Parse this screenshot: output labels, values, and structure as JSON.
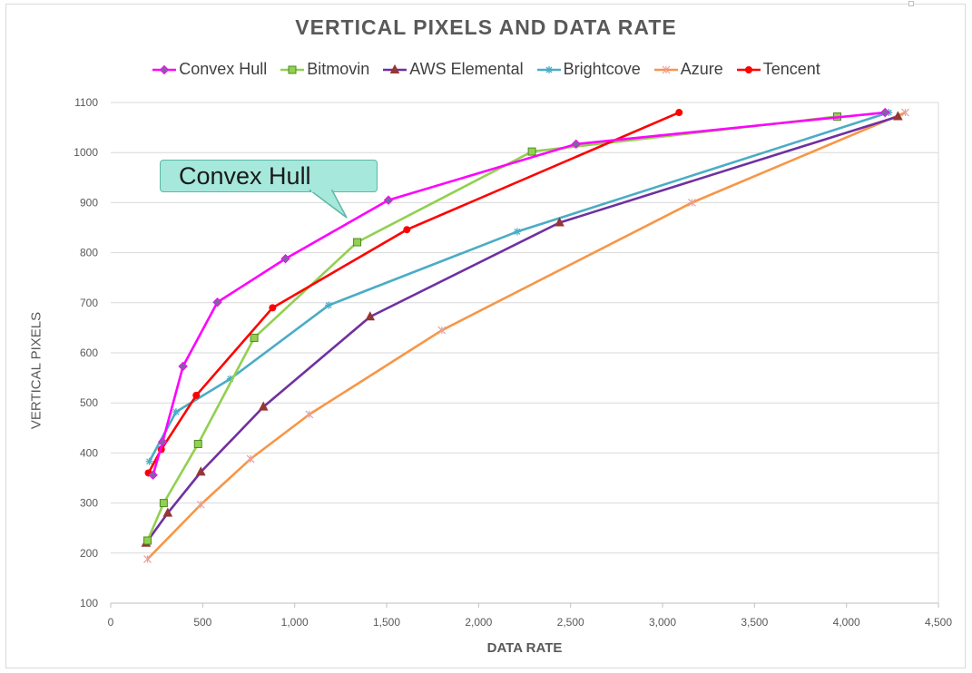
{
  "chart_data": {
    "type": "line",
    "title": "VERTICAL PIXELS AND DATA RATE",
    "xlabel": "DATA RATE",
    "ylabel": "VERTICAL PIXELS",
    "xlim": [
      0,
      4500
    ],
    "ylim": [
      100,
      1100
    ],
    "x_ticks": [
      "0",
      "500",
      "1,000",
      "1,500",
      "2,000",
      "2,500",
      "3,000",
      "3,500",
      "4,000",
      "4,500"
    ],
    "y_ticks": [
      "100",
      "200",
      "300",
      "400",
      "500",
      "600",
      "700",
      "800",
      "900",
      "1000",
      "1100"
    ],
    "x_tick_values": [
      0,
      500,
      1000,
      1500,
      2000,
      2500,
      3000,
      3500,
      4000,
      4500
    ],
    "y_tick_values": [
      100,
      200,
      300,
      400,
      500,
      600,
      700,
      800,
      900,
      1000,
      1100
    ],
    "grid": "horizontal",
    "legend_position": "top",
    "annotation": "Convex Hull",
    "series": [
      {
        "name": "Convex Hull",
        "color": "#ff00ff",
        "marker": "diamond",
        "points": [
          [
            230,
            356
          ],
          [
            282,
            422
          ],
          [
            393,
            573
          ],
          [
            580,
            701
          ],
          [
            950,
            788
          ],
          [
            1510,
            905
          ],
          [
            2530,
            1017
          ],
          [
            4210,
            1080
          ]
        ]
      },
      {
        "name": "Bitmovin",
        "color": "#92d050",
        "marker": "square",
        "points": [
          [
            200,
            225
          ],
          [
            288,
            300
          ],
          [
            475,
            418
          ],
          [
            780,
            630
          ],
          [
            1340,
            821
          ],
          [
            2290,
            1002
          ],
          [
            3950,
            1072
          ]
        ]
      },
      {
        "name": "AWS Elemental",
        "color": "#7030a0",
        "marker": "triangle",
        "points": [
          [
            192,
            220
          ],
          [
            310,
            280
          ],
          [
            490,
            362
          ],
          [
            830,
            492
          ],
          [
            1410,
            672
          ],
          [
            2440,
            860
          ],
          [
            4280,
            1072
          ]
        ]
      },
      {
        "name": "Brightcove",
        "color": "#4bacc6",
        "marker": "star",
        "points": [
          [
            210,
            383
          ],
          [
            355,
            482
          ],
          [
            650,
            548
          ],
          [
            1185,
            695
          ],
          [
            2210,
            842
          ],
          [
            4230,
            1080
          ]
        ]
      },
      {
        "name": "Azure",
        "color": "#f79646",
        "marker": "x",
        "points": [
          [
            200,
            188
          ],
          [
            490,
            297
          ],
          [
            760,
            388
          ],
          [
            1080,
            477
          ],
          [
            1800,
            645
          ],
          [
            3160,
            900
          ],
          [
            4320,
            1080
          ]
        ]
      },
      {
        "name": "Tencent",
        "color": "#ff0000",
        "marker": "circle",
        "points": [
          [
            205,
            360
          ],
          [
            275,
            407
          ],
          [
            465,
            515
          ],
          [
            880,
            690
          ],
          [
            1610,
            846
          ],
          [
            3090,
            1080
          ]
        ]
      }
    ]
  }
}
